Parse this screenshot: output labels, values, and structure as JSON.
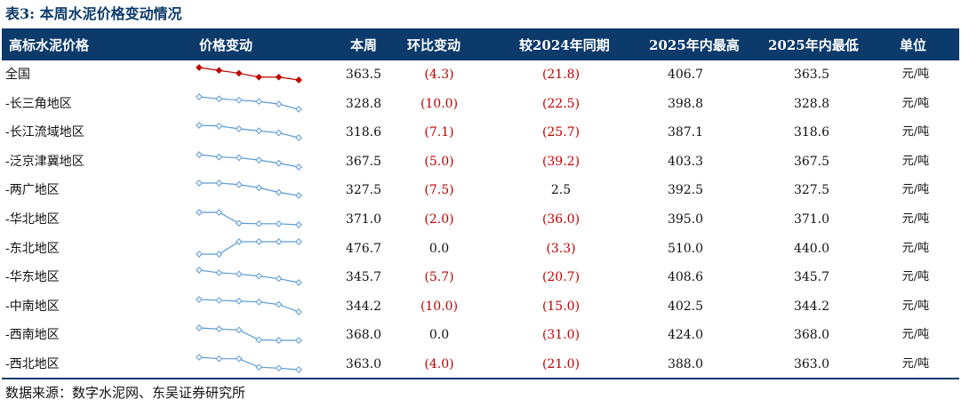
{
  "title": "表3:  本周水泥价格变动情况",
  "header": {
    "col_name": "高标水泥价格",
    "col_trend": "价格变动",
    "col_current": "本周",
    "col_mom": "环比变动",
    "col_yoy": "较2024年同期",
    "col_max": "2025年内最高",
    "col_min": "2025年内最低",
    "col_unit": "单位"
  },
  "colors": {
    "national_line": "#c00000",
    "region_line": "#5b9bd5",
    "header_bg": "#0b3a6b",
    "negative": "#c00000"
  },
  "rows": [
    {
      "name": "全国",
      "current": "363.5",
      "mom": "(4.3)",
      "yoy": "(21.8)",
      "max": "406.7",
      "min": "363.5",
      "unit": "元/吨",
      "trend": [
        406,
        400,
        394,
        386,
        386,
        380
      ]
    },
    {
      "name": "-长三角地区",
      "current": "328.8",
      "mom": "(10.0)",
      "yoy": "(22.5)",
      "max": "398.8",
      "min": "328.8",
      "unit": "元/吨",
      "trend": [
        398,
        392,
        388,
        384,
        376,
        360
      ]
    },
    {
      "name": "-长江流域地区",
      "current": "318.6",
      "mom": "(7.1)",
      "yoy": "(25.7)",
      "max": "387.1",
      "min": "318.6",
      "unit": "元/吨",
      "trend": [
        386,
        384,
        376,
        370,
        364,
        350
      ]
    },
    {
      "name": "-泛京津冀地区",
      "current": "367.5",
      "mom": "(5.0)",
      "yoy": "(39.2)",
      "max": "403.3",
      "min": "367.5",
      "unit": "元/吨",
      "trend": [
        403,
        400,
        399,
        396,
        392,
        387
      ]
    },
    {
      "name": "-两广地区",
      "current": "327.5",
      "mom": "(7.5)",
      "yoy": "2.5",
      "max": "392.5",
      "min": "327.5",
      "unit": "元/吨",
      "trend": [
        392,
        392,
        388,
        380,
        368,
        360
      ]
    },
    {
      "name": "-华北地区",
      "current": "371.0",
      "mom": "(2.0)",
      "yoy": "(36.0)",
      "max": "395.0",
      "min": "371.0",
      "unit": "元/吨",
      "trend": [
        395,
        395,
        374,
        373,
        373,
        371
      ]
    },
    {
      "name": "-东北地区",
      "current": "476.7",
      "mom": "0.0",
      "yoy": "(3.3)",
      "max": "510.0",
      "min": "440.0",
      "unit": "元/吨",
      "trend": [
        440,
        440,
        476,
        476,
        476,
        476
      ]
    },
    {
      "name": "-华东地区",
      "current": "345.7",
      "mom": "(5.7)",
      "yoy": "(20.7)",
      "max": "408.6",
      "min": "345.7",
      "unit": "元/吨",
      "trend": [
        408,
        400,
        396,
        390,
        382,
        370
      ]
    },
    {
      "name": "-中南地区",
      "current": "344.2",
      "mom": "(10.0)",
      "yoy": "(15.0)",
      "max": "402.5",
      "min": "344.2",
      "unit": "元/吨",
      "trend": [
        402,
        400,
        398,
        396,
        390,
        372
      ]
    },
    {
      "name": "-西南地区",
      "current": "368.0",
      "mom": "0.0",
      "yoy": "(31.0)",
      "max": "424.0",
      "min": "368.0",
      "unit": "元/吨",
      "trend": [
        424,
        420,
        416,
        380,
        378,
        378
      ]
    },
    {
      "name": "-西北地区",
      "current": "363.0",
      "mom": "(4.0)",
      "yoy": "(21.0)",
      "max": "388.0",
      "min": "363.0",
      "unit": "元/吨",
      "trend": [
        388,
        385,
        385,
        368,
        366,
        363
      ]
    }
  ],
  "source": "数据来源：数字水泥网、东吴证券研究所"
}
